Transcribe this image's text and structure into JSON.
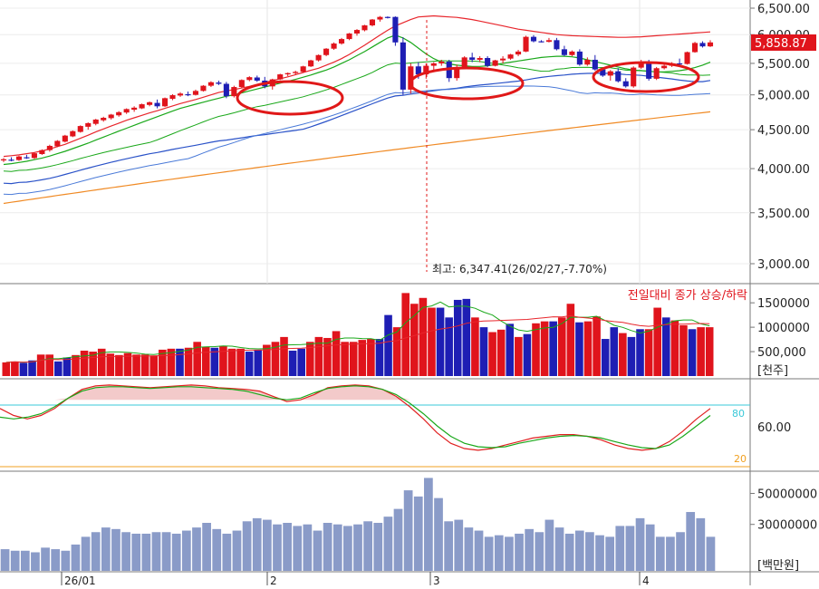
{
  "colors": {
    "up": "#e0141c",
    "down": "#1e1eb4",
    "ma_red": "#e8262c",
    "ma_green": "#1aa81a",
    "ma_blue": "#2a52c8",
    "ma_blue_light": "#4a7ad8",
    "ma_orange": "#f08a24",
    "volume_bar": "#8a9bc8",
    "stoch_upper": "#3ac8d8",
    "stoch_lower": "#f0a020",
    "annotation": "#e01818",
    "last_price_bg": "#e0141c"
  },
  "price_panel": {
    "axis_ticks": [
      "6,500.00",
      "6,000.00",
      "5,500.00",
      "5,000.00",
      "4,500.00",
      "4,000.00",
      "3,500.00",
      "3,000.00"
    ],
    "last_price": "5,858.87",
    "high_annotation": "최고: 6,347.41(26/02/27,-7.70%)"
  },
  "volume_panel": {
    "legend": "전일대비 종가 상승/하락",
    "axis_ticks": [
      "1500000",
      "1000000",
      "500,000"
    ],
    "unit": "[천주]"
  },
  "stochastic_panel": {
    "upper_level": "80",
    "lower_level": "20",
    "axis_ticks": [
      "60.00"
    ]
  },
  "amount_panel": {
    "axis_ticks": [
      "50000000",
      "30000000"
    ],
    "unit": "[백만원]"
  },
  "date_axis": [
    "26/01",
    "2",
    "3",
    "4"
  ],
  "chart_data": [
    {
      "type": "candlestick",
      "title": "",
      "x": "trading days (2025-12 to 2026-04)",
      "ylim": [
        2750,
        6550
      ],
      "y_scale": "log",
      "ohlc": [
        [
          4100,
          4130,
          4080,
          4115
        ],
        [
          4110,
          4140,
          4090,
          4105
        ],
        [
          4105,
          4160,
          4095,
          4150
        ],
        [
          4140,
          4170,
          4120,
          4135
        ],
        [
          4130,
          4200,
          4120,
          4190
        ],
        [
          4180,
          4240,
          4170,
          4230
        ],
        [
          4230,
          4300,
          4210,
          4285
        ],
        [
          4280,
          4360,
          4270,
          4350
        ],
        [
          4340,
          4430,
          4330,
          4420
        ],
        [
          4410,
          4490,
          4400,
          4480
        ],
        [
          4470,
          4560,
          4460,
          4550
        ],
        [
          4540,
          4600,
          4500,
          4590
        ],
        [
          4580,
          4650,
          4560,
          4640
        ],
        [
          4630,
          4680,
          4610,
          4665
        ],
        [
          4660,
          4720,
          4640,
          4710
        ],
        [
          4700,
          4760,
          4680,
          4745
        ],
        [
          4740,
          4800,
          4720,
          4790
        ],
        [
          4780,
          4830,
          4750,
          4810
        ],
        [
          4800,
          4870,
          4790,
          4860
        ],
        [
          4850,
          4900,
          4830,
          4890
        ],
        [
          4880,
          4930,
          4800,
          4830
        ],
        [
          4830,
          4960,
          4820,
          4950
        ],
        [
          4940,
          5010,
          4920,
          4995
        ],
        [
          4990,
          5040,
          4970,
          5020
        ],
        [
          5010,
          5050,
          4980,
          5000
        ],
        [
          5000,
          5080,
          4990,
          5060
        ],
        [
          5060,
          5150,
          5050,
          5140
        ],
        [
          5140,
          5210,
          5120,
          5195
        ],
        [
          5190,
          5220,
          5150,
          5170
        ],
        [
          5170,
          5200,
          4950,
          4980
        ],
        [
          4980,
          5140,
          4960,
          5120
        ],
        [
          5120,
          5240,
          5100,
          5230
        ],
        [
          5230,
          5290,
          5210,
          5275
        ],
        [
          5270,
          5300,
          5200,
          5220
        ],
        [
          5220,
          5280,
          5100,
          5130
        ],
        [
          5130,
          5250,
          5080,
          5240
        ],
        [
          5240,
          5330,
          5230,
          5320
        ],
        [
          5320,
          5350,
          5290,
          5340
        ],
        [
          5340,
          5380,
          5310,
          5360
        ],
        [
          5360,
          5460,
          5350,
          5450
        ],
        [
          5450,
          5560,
          5440,
          5550
        ],
        [
          5550,
          5650,
          5530,
          5640
        ],
        [
          5640,
          5760,
          5620,
          5750
        ],
        [
          5750,
          5860,
          5730,
          5840
        ],
        [
          5840,
          5940,
          5820,
          5920
        ],
        [
          5920,
          6030,
          5900,
          6020
        ],
        [
          6020,
          6100,
          5980,
          6085
        ],
        [
          6080,
          6180,
          6060,
          6170
        ],
        [
          6170,
          6290,
          6150,
          6280
        ],
        [
          6280,
          6347,
          6240,
          6330
        ],
        [
          6330,
          6340,
          6300,
          6320
        ],
        [
          6330,
          6340,
          5800,
          5860
        ],
        [
          5860,
          5950,
          5000,
          5080
        ],
        [
          5080,
          5500,
          5020,
          5450
        ],
        [
          5450,
          5520,
          5250,
          5320
        ],
        [
          5320,
          5500,
          5250,
          5460
        ],
        [
          5460,
          5520,
          5370,
          5500
        ],
        [
          5500,
          5560,
          5460,
          5530
        ],
        [
          5530,
          5560,
          5200,
          5260
        ],
        [
          5260,
          5480,
          5220,
          5440
        ],
        [
          5440,
          5620,
          5420,
          5600
        ],
        [
          5600,
          5680,
          5520,
          5560
        ],
        [
          5560,
          5620,
          5520,
          5590
        ],
        [
          5590,
          5620,
          5440,
          5460
        ],
        [
          5460,
          5560,
          5450,
          5550
        ],
        [
          5550,
          5620,
          5500,
          5580
        ],
        [
          5580,
          5660,
          5560,
          5650
        ],
        [
          5650,
          5730,
          5620,
          5700
        ],
        [
          5700,
          5980,
          5690,
          5960
        ],
        [
          5960,
          5990,
          5860,
          5880
        ],
        [
          5880,
          5900,
          5860,
          5870
        ],
        [
          5870,
          5940,
          5860,
          5900
        ],
        [
          5900,
          5940,
          5720,
          5740
        ],
        [
          5740,
          5800,
          5620,
          5640
        ],
        [
          5640,
          5720,
          5620,
          5700
        ],
        [
          5700,
          5740,
          5460,
          5480
        ],
        [
          5480,
          5600,
          5460,
          5560
        ],
        [
          5560,
          5640,
          5380,
          5400
        ],
        [
          5400,
          5420,
          5280,
          5300
        ],
        [
          5300,
          5390,
          5220,
          5370
        ],
        [
          5370,
          5420,
          5190,
          5210
        ],
        [
          5210,
          5260,
          5110,
          5130
        ],
        [
          5130,
          5450,
          5110,
          5430
        ],
        [
          5430,
          5560,
          5410,
          5530
        ],
        [
          5530,
          5560,
          5220,
          5250
        ],
        [
          5250,
          5440,
          5230,
          5420
        ],
        [
          5420,
          5480,
          5400,
          5460
        ],
        [
          5460,
          5520,
          5440,
          5500
        ],
        [
          5500,
          5580,
          5470,
          5490
        ],
        [
          5490,
          5700,
          5480,
          5690
        ],
        [
          5690,
          5870,
          5680,
          5850
        ],
        [
          5850,
          5880,
          5770,
          5790
        ],
        [
          5790,
          5900,
          5780,
          5860
        ]
      ],
      "series": [
        {
          "name": "",
          "values": [
            4150,
            4160,
            4170,
            4185,
            4200,
            4220,
            4245,
            4275,
            4305,
            4345,
            4385,
            4425,
            4470,
            4510,
            4550,
            4590,
            4630,
            4665,
            4700,
            4735,
            4765,
            4800,
            4835,
            4870,
            4900,
            4930,
            4965,
            5000,
            5035,
            5060,
            5080,
            5105,
            5130,
            5160,
            5190,
            5220,
            5250,
            5280,
            5315,
            5350,
            5385,
            5420,
            5470,
            5520,
            5580,
            5650,
            5730,
            5810,
            5900,
            5990,
            6080,
            6160,
            6220,
            6280,
            6330,
            6340,
            6350,
            6340,
            6330,
            6320,
            6300,
            6280,
            6250,
            6220,
            6190,
            6160,
            6130,
            6100,
            6080,
            6060,
            6040,
            6020,
            6000,
            5990,
            5980,
            5975,
            5970,
            5965,
            5960,
            5955,
            5950,
            5950,
            5955,
            5960,
            5970,
            5980,
            5990,
            6000,
            6010,
            6020,
            6030,
            6040,
            6050
          ]
        },
        {
          "name": "",
          "values": [
            4050,
            4060,
            4075,
            4090,
            4110,
            4130,
            4155,
            4185,
            4215,
            4250,
            4285,
            4320,
            4360,
            4400,
            4440,
            4480,
            4520,
            4560,
            4600,
            4640,
            4680,
            4720,
            4760,
            4800,
            4830,
            4860,
            4890,
            4920,
            4950,
            4980,
            5000,
            5030,
            5060,
            5090,
            5120,
            5150,
            5180,
            5210,
            5240,
            5275,
            5310,
            5350,
            5390,
            5440,
            5500,
            5560,
            5630,
            5700,
            5780,
            5860,
            5940,
            5990,
            5940,
            5860,
            5760,
            5660,
            5580,
            5520,
            5490,
            5470,
            5460,
            5450,
            5450,
            5460,
            5480,
            5500,
            5520,
            5540,
            5560,
            5580,
            5600,
            5610,
            5620,
            5620,
            5610,
            5590,
            5560,
            5530,
            5500,
            5470,
            5440,
            5410,
            5390,
            5380,
            5370,
            5360,
            5360,
            5370,
            5380,
            5400,
            5430,
            5470,
            5520
          ]
        }
      ]
    },
    {
      "type": "bar",
      "title": "",
      "ylabel": "[천주]",
      "ylim": [
        0,
        1800000
      ],
      "values": [
        280000,
        300000,
        270000,
        320000,
        440000,
        440000,
        300000,
        380000,
        430000,
        520000,
        500000,
        560000,
        460000,
        430000,
        470000,
        440000,
        440000,
        420000,
        540000,
        560000,
        560000,
        580000,
        700000,
        600000,
        580000,
        620000,
        560000,
        560000,
        500000,
        540000,
        640000,
        700000,
        800000,
        520000,
        560000,
        700000,
        800000,
        780000,
        920000,
        700000,
        700000,
        740000,
        760000,
        760000,
        1250000,
        1000000,
        1700000,
        1480000,
        1600000,
        1400000,
        1400000,
        1200000,
        1560000,
        1580000,
        1200000,
        1000000,
        900000,
        950000,
        1070000,
        800000,
        860000,
        1080000,
        1120000,
        1120000,
        1200000,
        1480000,
        1100000,
        1120000,
        1220000,
        760000,
        1000000,
        880000,
        800000,
        960000,
        960000,
        1400000,
        1200000,
        1140000,
        1040000,
        960000,
        1000000,
        1000000
      ],
      "up": [
        true,
        true,
        false,
        false,
        true,
        true,
        false,
        false,
        true,
        true,
        true,
        true,
        true,
        true,
        true,
        true,
        true,
        true,
        true,
        true,
        false,
        true,
        true,
        true,
        false,
        true,
        true,
        true,
        false,
        false,
        true,
        true,
        true,
        false,
        false,
        true,
        true,
        true,
        true,
        true,
        true,
        true,
        true,
        false,
        false,
        true,
        true,
        true,
        true,
        true,
        false,
        false,
        false,
        false,
        true,
        false,
        true,
        true,
        false,
        true,
        false,
        true,
        true,
        false,
        true,
        true,
        false,
        true,
        true,
        false,
        false,
        true,
        false,
        false,
        true,
        true,
        false,
        true,
        true,
        false,
        true,
        true
      ]
    },
    {
      "type": "line",
      "title": "",
      "ylim": [
        0,
        100
      ],
      "series": [
        {
          "name": "",
          "values": [
            70,
            62,
            58,
            62,
            70,
            82,
            92,
            96,
            97,
            96,
            95,
            94,
            95,
            96,
            97,
            96,
            94,
            93,
            92,
            90,
            84,
            78,
            80,
            86,
            94,
            96,
            97,
            96,
            92,
            84,
            72,
            58,
            42,
            30,
            24,
            22,
            24,
            28,
            32,
            36,
            38,
            40,
            40,
            38,
            34,
            28,
            24,
            22,
            24,
            32,
            44,
            58,
            70
          ]
        },
        {
          "name": "",
          "values": [
            60,
            58,
            60,
            64,
            72,
            82,
            90,
            94,
            95,
            95,
            94,
            93,
            94,
            95,
            95,
            94,
            93,
            92,
            90,
            86,
            82,
            80,
            82,
            88,
            93,
            95,
            96,
            95,
            92,
            86,
            76,
            64,
            50,
            38,
            30,
            26,
            25,
            26,
            30,
            33,
            36,
            38,
            39,
            38,
            36,
            32,
            28,
            25,
            24,
            28,
            38,
            50,
            62
          ]
        }
      ]
    },
    {
      "type": "bar",
      "title": "",
      "ylabel": "[백만원]",
      "ylim": [
        0,
        62000000
      ],
      "values": [
        14000000,
        13000000,
        13000000,
        12000000,
        15000000,
        14000000,
        13000000,
        17000000,
        22000000,
        25000000,
        28000000,
        27000000,
        25000000,
        24000000,
        24000000,
        25000000,
        25000000,
        24000000,
        26000000,
        28000000,
        31000000,
        27000000,
        24000000,
        26000000,
        32000000,
        34000000,
        33000000,
        30000000,
        31000000,
        29000000,
        30000000,
        26000000,
        31000000,
        30000000,
        29000000,
        30000000,
        32000000,
        31000000,
        35000000,
        40000000,
        52000000,
        48000000,
        60000000,
        47000000,
        32000000,
        33000000,
        28000000,
        26000000,
        22000000,
        23000000,
        22000000,
        24000000,
        27000000,
        25000000,
        33000000,
        28000000,
        24000000,
        26000000,
        25000000,
        23000000,
        22000000,
        29000000,
        29000000,
        34000000,
        30000000,
        22000000,
        22000000,
        25000000,
        38000000,
        34000000,
        22000000
      ]
    }
  ]
}
